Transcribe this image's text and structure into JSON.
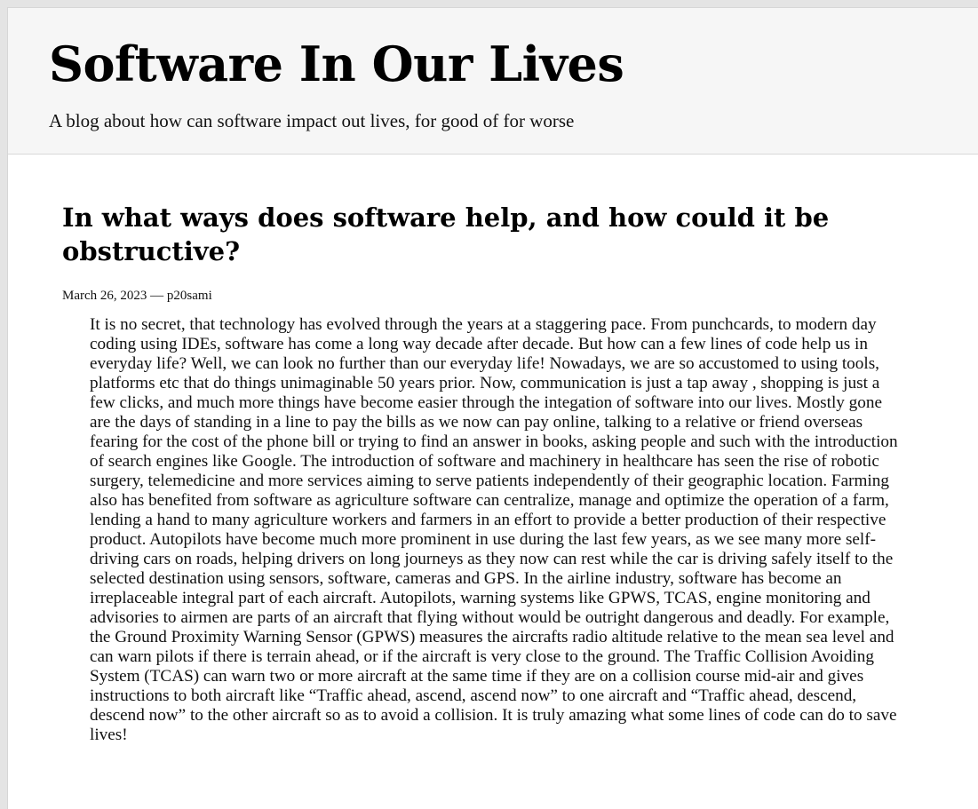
{
  "site": {
    "title": "Software In Our Lives",
    "tagline": "A blog about how can software impact out lives, for good of for worse"
  },
  "post": {
    "title": "In what ways does software help, and how could it be obstructive?",
    "date": "March 26, 2023",
    "separator": "—",
    "author": "p20sami",
    "body": "It is no secret, that technology has evolved through the years at a staggering pace. From punchcards, to modern day coding using IDEs, software has come a long way decade after decade. But how can a few lines of code help us in everyday life? Well, we can look no further than our everyday life! Nowadays, we are so accustomed to using tools, platforms etc that do things unimaginable 50 years prior. Now, communication is just a tap away , shopping is just a few clicks, and much more things have become easier through the integation of software into our lives. Mostly gone are the days of standing in a line to pay the bills as we now can pay online, talking to a relative or friend overseas fearing for the cost of the phone bill or trying to find an answer in books, asking people and such with the introduction of search engines like Google. The introduction of software and machinery in healthcare has seen the rise of robotic surgery, telemedicine and more services aiming to serve patients independently of their geographic location. Farming also has benefited from software as agriculture software can centralize, manage and optimize the operation of a farm, lending a hand to many agriculture workers and farmers in an effort to provide a better production of their respective product. Autopilots have become much more prominent in use during the last few years, as we see many more self-driving cars on roads, helping drivers on long journeys as they now can rest while the car is driving safely itself to the selected destination using sensors, software, cameras and GPS. In the airline industry, software has become an irreplaceable integral part of each aircraft. Autopilots, warning systems like GPWS, TCAS, engine monitoring and advisories to airmen are parts of an aircraft that flying without would be outright dangerous and deadly. For example, the Ground Proximity Warning Sensor (GPWS) measures the aircrafts radio altitude relative to the mean sea level and can warn pilots if there is terrain ahead, or if the aircraft is very close to the ground. The Traffic Collision Avoiding System (TCAS) can warn two or more aircraft at the same time if they are on a collision course mid-air and gives instructions to both aircraft like “Traffic ahead, ascend, ascend now” to one aircraft and “Traffic ahead, descend, descend now” to the other aircraft so as to avoid a collision. It is truly amazing what some lines of code can do to save lives!"
  }
}
